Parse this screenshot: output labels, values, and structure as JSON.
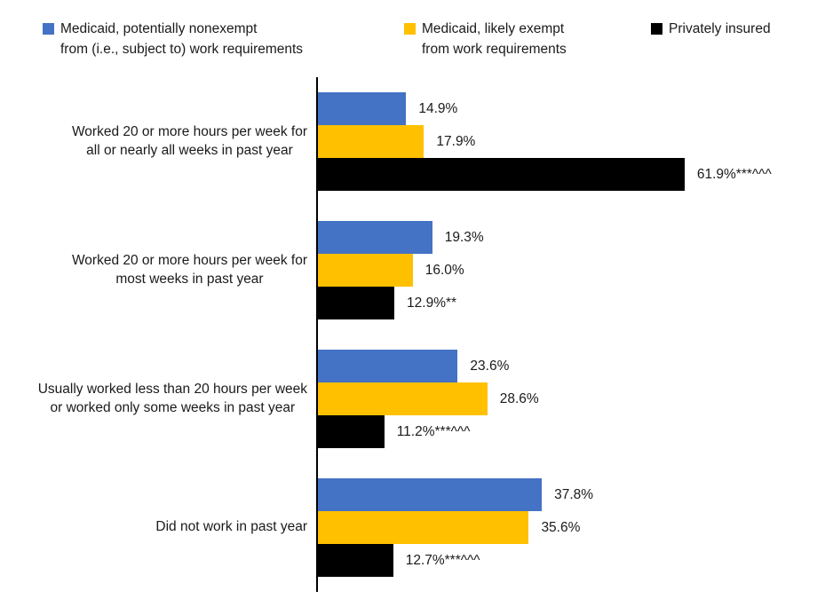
{
  "legend": {
    "items": [
      {
        "key": "medicaid-nonexempt",
        "label": "Medicaid, potentially nonexempt\nfrom (i.e., subject to) work requirements",
        "color": "#4472C4"
      },
      {
        "key": "medicaid-exempt",
        "label": "Medicaid, likely exempt\nfrom work requirements",
        "color": "#FFC000"
      },
      {
        "key": "privately-insured",
        "label": "Privately insured",
        "color": "#000000"
      }
    ]
  },
  "chart_data": {
    "type": "bar",
    "orientation": "horizontal",
    "title": "",
    "grid": false,
    "legend_position": "top",
    "value_axis": {
      "min": 0,
      "max_implied": 87,
      "ticks": "none",
      "unit": "%"
    },
    "categories": [
      "Worked 20 or more hours per week for\nall or nearly all weeks in past year",
      "Worked 20 or more hours per week for\nmost weeks in past year",
      "Usually worked less than 20 hours per week\nor worked only some weeks in past year",
      "Did not work in past year"
    ],
    "series": [
      {
        "key": "medicaid-nonexempt",
        "name": "Medicaid, potentially nonexempt from (i.e., subject to) work requirements",
        "color": "#4472C4",
        "values": [
          14.9,
          19.3,
          23.6,
          37.8
        ],
        "labels": [
          "14.9%",
          "19.3%",
          "23.6%",
          "37.8%"
        ]
      },
      {
        "key": "medicaid-exempt",
        "name": "Medicaid, likely exempt from work requirements",
        "color": "#FFC000",
        "values": [
          17.9,
          16.0,
          28.6,
          35.6
        ],
        "labels": [
          "17.9%",
          "16.0%",
          "28.6%",
          "35.6%"
        ]
      },
      {
        "key": "privately-insured",
        "name": "Privately insured",
        "color": "#000000",
        "values": [
          61.9,
          12.9,
          11.2,
          12.7
        ],
        "labels": [
          "61.9%***^^^",
          "12.9%**",
          "11.2%***^^^",
          "12.7%***^^^"
        ]
      }
    ]
  }
}
